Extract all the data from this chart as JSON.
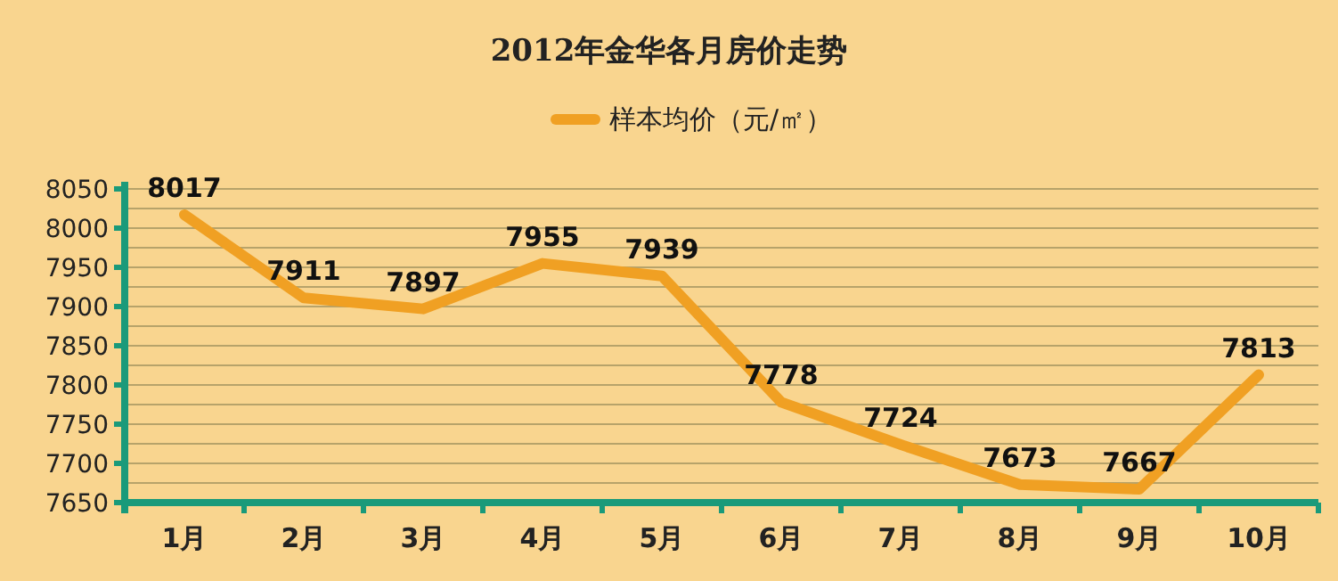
{
  "chart_data": {
    "type": "line",
    "title": "2012年金华各月房价走势",
    "categories": [
      "1月",
      "2月",
      "3月",
      "4月",
      "5月",
      "6月",
      "7月",
      "8月",
      "9月",
      "10月"
    ],
    "series": [
      {
        "name": "样本均价（元/㎡）",
        "color": "#f0a023",
        "values": [
          8017,
          7911,
          7897,
          7955,
          7939,
          7778,
          7724,
          7673,
          7667,
          7813
        ]
      }
    ],
    "ylim": [
      7650,
      8050
    ],
    "yticks": [
      7650,
      {
        "value": 7675,
        "label": null
      },
      7700,
      {
        "value": 7725,
        "label": null
      },
      7750,
      {
        "value": 7775,
        "label": null
      },
      7800,
      {
        "value": 7825,
        "label": null
      },
      7850,
      {
        "value": 7875,
        "label": null
      },
      7900,
      {
        "value": 7925,
        "label": null
      },
      7950,
      {
        "value": 7975,
        "label": null
      },
      8000,
      {
        "value": 8025,
        "label": null
      },
      8050
    ],
    "grid": "y",
    "legend": "top",
    "data_labels": true,
    "marker": "none",
    "line_style": "solid"
  }
}
